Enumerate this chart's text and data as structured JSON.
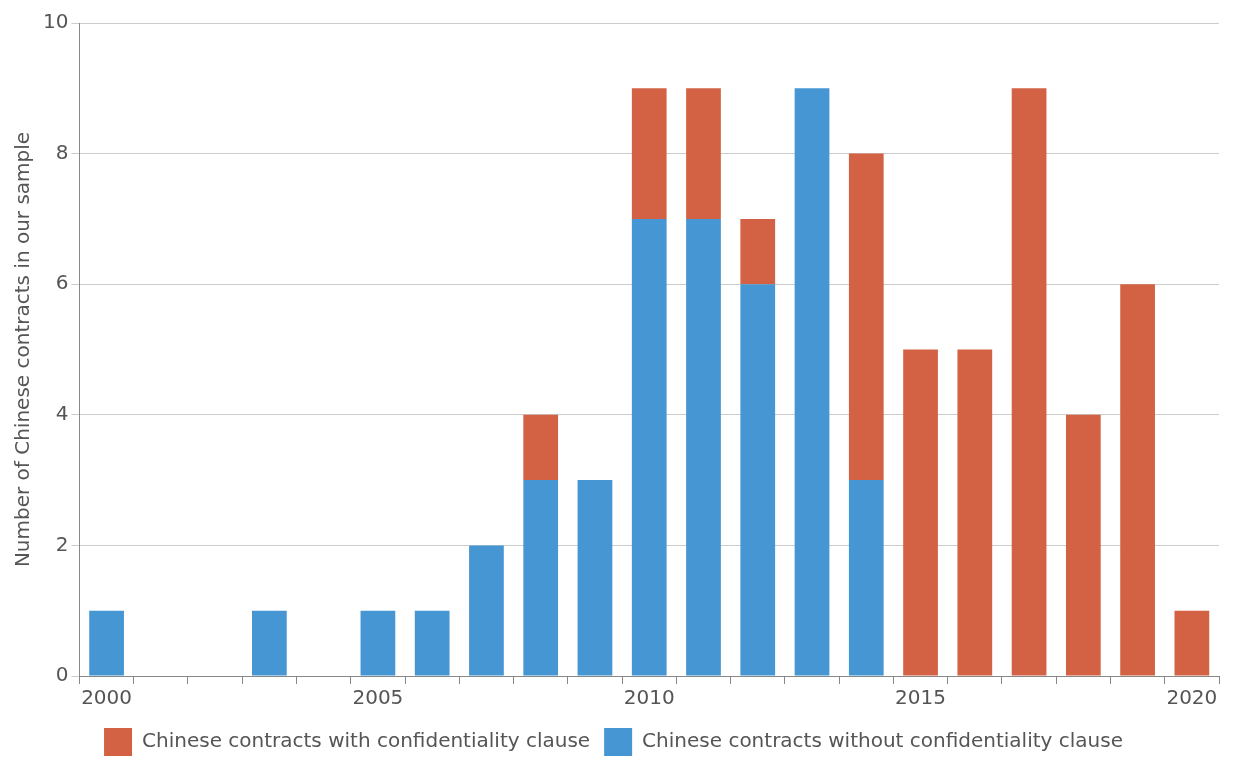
{
  "chart_data": {
    "type": "bar",
    "stacked": true,
    "ylabel": "Number of Chinese contracts in our sample",
    "categories": [
      "2000",
      null,
      null,
      null,
      null,
      "2005",
      null,
      null,
      null,
      null,
      "2010",
      null,
      null,
      null,
      null,
      "2015",
      null,
      null,
      null,
      null,
      "2020"
    ],
    "series": [
      {
        "name": "Chinese contracts without confidentiality clause",
        "color": "#4596d3",
        "values": [
          1,
          null,
          null,
          1,
          null,
          1,
          1,
          2,
          3,
          3,
          7,
          7,
          6,
          9,
          3,
          null,
          null,
          null,
          null,
          null,
          null
        ]
      },
      {
        "name": "Chinese contracts with confidentiality clause",
        "color": "#d36244",
        "values": [
          null,
          null,
          null,
          null,
          null,
          null,
          null,
          null,
          1,
          null,
          2,
          2,
          1,
          null,
          5,
          5,
          5,
          9,
          4,
          6,
          1
        ]
      }
    ],
    "ylim": [
      0,
      10
    ],
    "yticks": [
      0,
      2,
      4,
      6,
      8,
      10
    ],
    "grid": "y",
    "legend": "bottom"
  }
}
